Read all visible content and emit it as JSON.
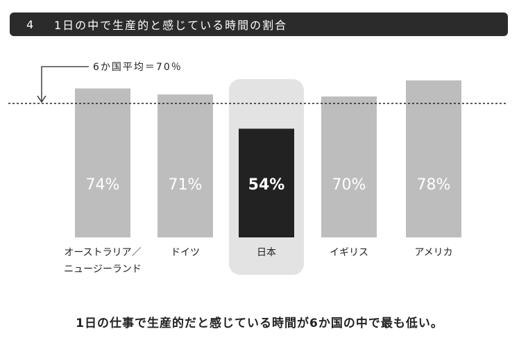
{
  "header": {
    "number": "4",
    "title": "1日の中で生産的と感じている時間の割合"
  },
  "chart_data": {
    "type": "bar",
    "title": "1日の中で生産的と感じている時間の割合",
    "categories": [
      [
        "オーストラリア／",
        "ニュージーランド"
      ],
      [
        "ドイツ"
      ],
      [
        "日本"
      ],
      [
        "イギリス"
      ],
      [
        "アメリカ"
      ]
    ],
    "values": [
      74,
      71,
      54,
      70,
      78
    ],
    "value_labels": [
      "74%",
      "71%",
      "54%",
      "70%",
      "78%"
    ],
    "highlight_index": 2,
    "average": {
      "value": 70,
      "label": "6か国平均＝70％"
    },
    "colors": {
      "bar": "#bdbdbd",
      "highlight_bar": "#222222",
      "highlight_bg": "#e3e3e3",
      "value_text": "#ffffff"
    }
  },
  "caption": "1日の仕事で生産的だと感じている時間が6か国の中で最も低い。"
}
